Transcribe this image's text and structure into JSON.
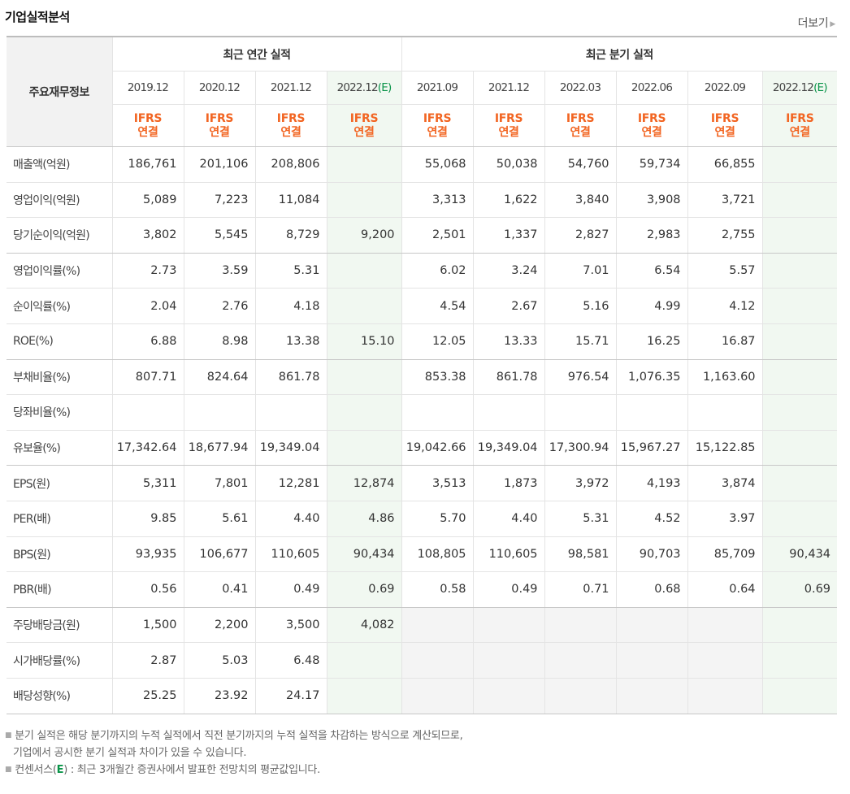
{
  "title": "기업실적분석",
  "more_label": "더보기",
  "corner_label": "주요재무정보",
  "groups": {
    "annual": "최근 연간 실적",
    "quarter": "최근 분기 실적"
  },
  "periods": [
    {
      "date": "2019.12",
      "suffix": "",
      "basis1": "IFRS",
      "basis2": "연결"
    },
    {
      "date": "2020.12",
      "suffix": "",
      "basis1": "IFRS",
      "basis2": "연결"
    },
    {
      "date": "2021.12",
      "suffix": "",
      "basis1": "IFRS",
      "basis2": "연결"
    },
    {
      "date": "2022.12",
      "suffix": "(E)",
      "basis1": "IFRS",
      "basis2": "연결"
    },
    {
      "date": "2021.09",
      "suffix": "",
      "basis1": "IFRS",
      "basis2": "연결"
    },
    {
      "date": "2021.12",
      "suffix": "",
      "basis1": "IFRS",
      "basis2": "연결"
    },
    {
      "date": "2022.03",
      "suffix": "",
      "basis1": "IFRS",
      "basis2": "연결"
    },
    {
      "date": "2022.06",
      "suffix": "",
      "basis1": "IFRS",
      "basis2": "연결"
    },
    {
      "date": "2022.09",
      "suffix": "",
      "basis1": "IFRS",
      "basis2": "연결"
    },
    {
      "date": "2022.12",
      "suffix": "(E)",
      "basis1": "IFRS",
      "basis2": "연결"
    }
  ],
  "rows": [
    {
      "label": "매출액(억원)",
      "values": [
        "186,761",
        "201,106",
        "208,806",
        "",
        "55,068",
        "50,038",
        "54,760",
        "59,734",
        "66,855",
        ""
      ]
    },
    {
      "label": "영업이익(억원)",
      "values": [
        "5,089",
        "7,223",
        "11,084",
        "",
        "3,313",
        "1,622",
        "3,840",
        "3,908",
        "3,721",
        ""
      ]
    },
    {
      "label": "당기순이익(억원)",
      "values": [
        "3,802",
        "5,545",
        "8,729",
        "9,200",
        "2,501",
        "1,337",
        "2,827",
        "2,983",
        "2,755",
        ""
      ]
    },
    {
      "label": "영업이익률(%)",
      "values": [
        "2.73",
        "3.59",
        "5.31",
        "",
        "6.02",
        "3.24",
        "7.01",
        "6.54",
        "5.57",
        ""
      ]
    },
    {
      "label": "순이익률(%)",
      "values": [
        "2.04",
        "2.76",
        "4.18",
        "",
        "4.54",
        "2.67",
        "5.16",
        "4.99",
        "4.12",
        ""
      ]
    },
    {
      "label": "ROE(%)",
      "values": [
        "6.88",
        "8.98",
        "13.38",
        "15.10",
        "12.05",
        "13.33",
        "15.71",
        "16.25",
        "16.87",
        ""
      ]
    },
    {
      "label": "부채비율(%)",
      "values": [
        "807.71",
        "824.64",
        "861.78",
        "",
        "853.38",
        "861.78",
        "976.54",
        "1,076.35",
        "1,163.60",
        ""
      ]
    },
    {
      "label": "당좌비율(%)",
      "values": [
        "",
        "",
        "",
        "",
        "",
        "",
        "",
        "",
        "",
        ""
      ]
    },
    {
      "label": "유보율(%)",
      "values": [
        "17,342.64",
        "18,677.94",
        "19,349.04",
        "",
        "19,042.66",
        "19,349.04",
        "17,300.94",
        "15,967.27",
        "15,122.85",
        ""
      ]
    },
    {
      "label": "EPS(원)",
      "values": [
        "5,311",
        "7,801",
        "12,281",
        "12,874",
        "3,513",
        "1,873",
        "3,972",
        "4,193",
        "3,874",
        ""
      ]
    },
    {
      "label": "PER(배)",
      "values": [
        "9.85",
        "5.61",
        "4.40",
        "4.86",
        "5.70",
        "4.40",
        "5.31",
        "4.52",
        "3.97",
        ""
      ]
    },
    {
      "label": "BPS(원)",
      "values": [
        "93,935",
        "106,677",
        "110,605",
        "90,434",
        "108,805",
        "110,605",
        "98,581",
        "90,703",
        "85,709",
        "90,434"
      ]
    },
    {
      "label": "PBR(배)",
      "values": [
        "0.56",
        "0.41",
        "0.49",
        "0.69",
        "0.58",
        "0.49",
        "0.71",
        "0.68",
        "0.64",
        "0.69"
      ]
    },
    {
      "label": "주당배당금(원)",
      "values": [
        "1,500",
        "2,200",
        "3,500",
        "4,082",
        "",
        "",
        "",
        "",
        "",
        ""
      ]
    },
    {
      "label": "시가배당률(%)",
      "values": [
        "2.87",
        "5.03",
        "6.48",
        "",
        "",
        "",
        "",
        "",
        "",
        ""
      ]
    },
    {
      "label": "배당성향(%)",
      "values": [
        "25.25",
        "23.92",
        "24.17",
        "",
        "",
        "",
        "",
        "",
        "",
        ""
      ]
    }
  ],
  "notes": {
    "line1": "분기 실적은 해당 분기까지의 누적 실적에서 직전 분기까지의 누적 실적을 차감하는 방식으로 계산되므로,",
    "line2": "기업에서 공시한 분기 실적과 차이가 있을 수 있습니다.",
    "line3_prefix": "컨센서스(",
    "line3_e": "E",
    "line3_suffix": ") : 최근 3개월간 증권사에서 발표한 전망치의 평균값입니다."
  },
  "colors": {
    "accent_orange": "#f26522",
    "estimate_green": "#0a9449",
    "estimate_bg": "#f1f8f1",
    "empty_bg": "#f4f4f4"
  }
}
